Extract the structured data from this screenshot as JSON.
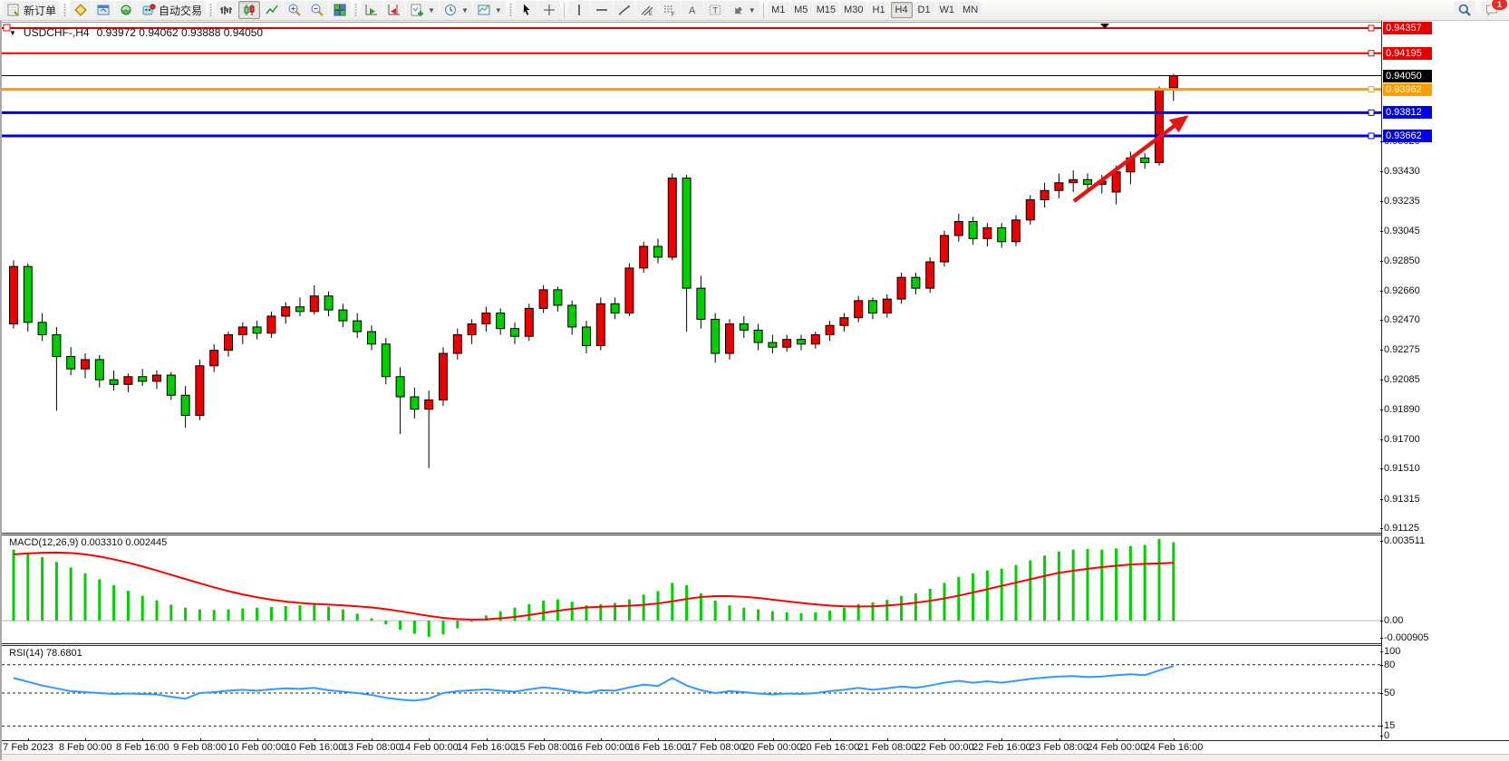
{
  "toolbar": {
    "new_order_label": "新订单",
    "auto_trading_label": "自动交易",
    "timeframes": [
      "M1",
      "M5",
      "M15",
      "M30",
      "H1",
      "H4",
      "D1",
      "W1",
      "MN"
    ],
    "active_timeframe": "H4",
    "notification_badge": "1",
    "icon_names": [
      "new-order",
      "market-watch",
      "navigator",
      "signals",
      "auto-trading",
      "bar-chart",
      "candlestick-chart",
      "line-chart",
      "zoom-in",
      "zoom-out",
      "tile-windows",
      "auto-scroll",
      "chart-shift",
      "add-indicator",
      "periods-clock",
      "templates",
      "cursor",
      "crosshair",
      "vertical-line",
      "horizontal-line",
      "trendline",
      "equidistant-channel",
      "fibonacci",
      "text",
      "text-label",
      "arrows",
      "search",
      "chat"
    ]
  },
  "symbol_header": {
    "title": "USDCHF-,H4",
    "ohlc": "0.93972 0.94062 0.93888 0.94050"
  },
  "indicators": {
    "macd_label": "MACD(12,26,9) 0.003310 0.002445",
    "rsi_label": "RSI(14) 78.6801",
    "macd_scale": [
      {
        "text": "0.003511",
        "v": 0.003511
      },
      {
        "text": "0.00",
        "v": 0.0
      },
      {
        "text": "-0.000905",
        "v": -0.000905
      }
    ],
    "rsi_scale": [
      {
        "text": "100",
        "v": 100
      },
      {
        "text": "80",
        "v": 80
      },
      {
        "text": "50",
        "v": 50
      },
      {
        "text": "15",
        "v": 15
      },
      {
        "text": "0",
        "v": 0
      }
    ],
    "rsi_dashed_levels": [
      80,
      50,
      15
    ]
  },
  "price_axis_ticks": [
    "0.93620",
    "0.93430",
    "0.93235",
    "0.93045",
    "0.92850",
    "0.92660",
    "0.92470",
    "0.92275",
    "0.92085",
    "0.91890",
    "0.91700",
    "0.91510",
    "0.91315",
    "0.91125"
  ],
  "levels": [
    {
      "label": "0.94357",
      "price": 0.94357,
      "color": "#e60000",
      "width": 2
    },
    {
      "label": "0.94195",
      "price": 0.94195,
      "color": "#e60000",
      "width": 2
    },
    {
      "label": "0.94050",
      "price": 0.9405,
      "color": "#000000",
      "width": 1,
      "current": true
    },
    {
      "label": "0.93962",
      "price": 0.93962,
      "color": "#ff9c00",
      "width": 3
    },
    {
      "label": "0.93812",
      "price": 0.93812,
      "color": "#0000e8",
      "width": 3
    },
    {
      "label": "0.93662",
      "price": 0.93662,
      "color": "#0000e8",
      "width": 3
    }
  ],
  "time_axis_labels": [
    "7 Feb 2023",
    "8 Feb 00:00",
    "8 Feb 16:00",
    "9 Feb 08:00",
    "10 Feb 00:00",
    "10 Feb 16:00",
    "13 Feb 08:00",
    "14 Feb 00:00",
    "14 Feb 16:00",
    "15 Feb 08:00",
    "16 Feb 00:00",
    "16 Feb 16:00",
    "17 Feb 08:00",
    "20 Feb 00:00",
    "20 Feb 16:00",
    "21 Feb 08:00",
    "22 Feb 00:00",
    "22 Feb 16:00",
    "23 Feb 08:00",
    "24 Feb 00:00",
    "24 Feb 16:00"
  ],
  "colors": {
    "bull_candle": "#ee0000",
    "bear_candle": "#00ce00",
    "candle_border": "#000000",
    "macd_histogram": "#00d000",
    "macd_signal": "#ff0000",
    "rsi_line": "#3399ff",
    "arrow": "#e31515",
    "current_price_line": "#000000"
  },
  "chart_data": {
    "type": "candlestick",
    "symbol": "USDCHF",
    "timeframe": "H4",
    "price_range": [
      0.91104,
      0.94392
    ],
    "x_start": 13,
    "x_step": 15.8,
    "label_x_start": 29,
    "label_x_step": 63.2,
    "candles": [
      [
        0.9245,
        0.9286,
        0.9242,
        0.9282
      ],
      [
        0.9282,
        0.9284,
        0.924,
        0.9246
      ],
      [
        0.9246,
        0.9252,
        0.9234,
        0.9238
      ],
      [
        0.9238,
        0.9243,
        0.9189,
        0.9224
      ],
      [
        0.9224,
        0.923,
        0.9212,
        0.9216
      ],
      [
        0.9216,
        0.9226,
        0.921,
        0.9222
      ],
      [
        0.9222,
        0.9225,
        0.9204,
        0.9209
      ],
      [
        0.9209,
        0.9215,
        0.9202,
        0.9206
      ],
      [
        0.9206,
        0.9213,
        0.9201,
        0.9211
      ],
      [
        0.9211,
        0.9216,
        0.9205,
        0.9208
      ],
      [
        0.9208,
        0.9215,
        0.9203,
        0.9212
      ],
      [
        0.9212,
        0.9214,
        0.9196,
        0.9199
      ],
      [
        0.9199,
        0.9205,
        0.9178,
        0.9186
      ],
      [
        0.9186,
        0.9222,
        0.9183,
        0.9218
      ],
      [
        0.9218,
        0.9232,
        0.9214,
        0.9228
      ],
      [
        0.9228,
        0.924,
        0.9224,
        0.9238
      ],
      [
        0.9238,
        0.9246,
        0.9232,
        0.9243
      ],
      [
        0.9243,
        0.9247,
        0.9235,
        0.9239
      ],
      [
        0.9239,
        0.9253,
        0.9236,
        0.925
      ],
      [
        0.925,
        0.9259,
        0.9245,
        0.9256
      ],
      [
        0.9256,
        0.9262,
        0.925,
        0.9253
      ],
      [
        0.9253,
        0.927,
        0.9251,
        0.9263
      ],
      [
        0.9263,
        0.9266,
        0.925,
        0.9254
      ],
      [
        0.9254,
        0.9258,
        0.9243,
        0.9247
      ],
      [
        0.9247,
        0.9252,
        0.9236,
        0.924
      ],
      [
        0.924,
        0.9244,
        0.9228,
        0.9232
      ],
      [
        0.9232,
        0.9236,
        0.9206,
        0.9211
      ],
      [
        0.9211,
        0.9217,
        0.9174,
        0.9198
      ],
      [
        0.9198,
        0.9204,
        0.9184,
        0.919
      ],
      [
        0.919,
        0.9202,
        0.9152,
        0.9196
      ],
      [
        0.9196,
        0.923,
        0.9192,
        0.9226
      ],
      [
        0.9226,
        0.9242,
        0.9222,
        0.9238
      ],
      [
        0.9238,
        0.9248,
        0.9232,
        0.9245
      ],
      [
        0.9245,
        0.9256,
        0.924,
        0.9252
      ],
      [
        0.9252,
        0.9255,
        0.9238,
        0.9242
      ],
      [
        0.9242,
        0.9246,
        0.9232,
        0.9237
      ],
      [
        0.9237,
        0.9258,
        0.9234,
        0.9255
      ],
      [
        0.9255,
        0.927,
        0.9252,
        0.9267
      ],
      [
        0.9267,
        0.9269,
        0.9253,
        0.9257
      ],
      [
        0.9257,
        0.926,
        0.9238,
        0.9243
      ],
      [
        0.9243,
        0.9247,
        0.9226,
        0.9231
      ],
      [
        0.9231,
        0.9262,
        0.9228,
        0.9258
      ],
      [
        0.9258,
        0.9262,
        0.9248,
        0.9252
      ],
      [
        0.9252,
        0.9284,
        0.925,
        0.9281
      ],
      [
        0.9281,
        0.9298,
        0.9278,
        0.9295
      ],
      [
        0.9295,
        0.93,
        0.9284,
        0.9288
      ],
      [
        0.9288,
        0.9342,
        0.9286,
        0.9339
      ],
      [
        0.9339,
        0.9341,
        0.924,
        0.9268
      ],
      [
        0.9268,
        0.9276,
        0.9242,
        0.9248
      ],
      [
        0.9248,
        0.9252,
        0.922,
        0.9226
      ],
      [
        0.9226,
        0.9248,
        0.9222,
        0.9245
      ],
      [
        0.9245,
        0.925,
        0.9236,
        0.9241
      ],
      [
        0.9241,
        0.9245,
        0.9228,
        0.9233
      ],
      [
        0.9233,
        0.9238,
        0.9226,
        0.923
      ],
      [
        0.923,
        0.9238,
        0.9227,
        0.9235
      ],
      [
        0.9235,
        0.9238,
        0.9228,
        0.9232
      ],
      [
        0.9232,
        0.924,
        0.9229,
        0.9238
      ],
      [
        0.9238,
        0.9247,
        0.9234,
        0.9244
      ],
      [
        0.9244,
        0.9252,
        0.924,
        0.9249
      ],
      [
        0.9249,
        0.9263,
        0.9246,
        0.926
      ],
      [
        0.926,
        0.9262,
        0.9248,
        0.9252
      ],
      [
        0.9252,
        0.9264,
        0.9249,
        0.9261
      ],
      [
        0.9261,
        0.9278,
        0.9258,
        0.9275
      ],
      [
        0.9275,
        0.9278,
        0.9264,
        0.9268
      ],
      [
        0.9268,
        0.9288,
        0.9265,
        0.9285
      ],
      [
        0.9285,
        0.9305,
        0.9282,
        0.9302
      ],
      [
        0.9302,
        0.9316,
        0.9298,
        0.9311
      ],
      [
        0.9311,
        0.9314,
        0.9296,
        0.93
      ],
      [
        0.93,
        0.931,
        0.9295,
        0.9307
      ],
      [
        0.9307,
        0.931,
        0.9294,
        0.9298
      ],
      [
        0.9298,
        0.9315,
        0.9295,
        0.9312
      ],
      [
        0.9312,
        0.9328,
        0.9309,
        0.9325
      ],
      [
        0.9325,
        0.9336,
        0.932,
        0.9331
      ],
      [
        0.9331,
        0.9342,
        0.9326,
        0.9336
      ],
      [
        0.9336,
        0.9344,
        0.933,
        0.9338
      ],
      [
        0.9338,
        0.9342,
        0.9331,
        0.9335
      ],
      [
        0.9335,
        0.9341,
        0.9329,
        0.9337
      ],
      [
        0.933,
        0.9347,
        0.9322,
        0.9343
      ],
      [
        0.9343,
        0.9356,
        0.9335,
        0.9352
      ],
      [
        0.9352,
        0.9355,
        0.9345,
        0.9349
      ],
      [
        0.9349,
        0.9398,
        0.9347,
        0.9396
      ],
      [
        0.93972,
        0.94062,
        0.93888,
        0.9405
      ]
    ],
    "macd": {
      "params": "12,26,9",
      "main_value": 0.00331,
      "signal_value": 0.002445,
      "range": [
        -0.00095,
        0.0036
      ],
      "histogram": [
        0.003,
        0.00285,
        0.00268,
        0.00248,
        0.00225,
        0.002,
        0.00175,
        0.0015,
        0.00126,
        0.00105,
        0.00086,
        0.00068,
        0.00055,
        0.00048,
        0.00045,
        0.00048,
        0.00052,
        0.00055,
        0.00058,
        0.00062,
        0.00065,
        0.00068,
        0.0006,
        0.00048,
        0.0003,
        0.0001,
        -0.00015,
        -0.00038,
        -0.00055,
        -0.00068,
        -0.00058,
        -0.00032,
        -5e-05,
        0.00022,
        0.0004,
        0.00055,
        0.0007,
        0.00085,
        0.0009,
        0.0008,
        0.00065,
        0.0007,
        0.00075,
        0.0009,
        0.0011,
        0.00125,
        0.0016,
        0.0015,
        0.00115,
        0.00085,
        0.00065,
        0.00055,
        0.00048,
        0.0004,
        0.00035,
        0.00032,
        0.00035,
        0.00042,
        0.00055,
        0.0007,
        0.00078,
        0.00088,
        0.00105,
        0.00115,
        0.00135,
        0.0016,
        0.00185,
        0.002,
        0.00212,
        0.0022,
        0.00235,
        0.00255,
        0.00275,
        0.00292,
        0.003,
        0.00303,
        0.003,
        0.00305,
        0.00315,
        0.0032,
        0.00345,
        0.00331
      ],
      "signal": [
        0.0028,
        0.00284,
        0.00287,
        0.00288,
        0.00286,
        0.0028,
        0.00271,
        0.00259,
        0.00245,
        0.00229,
        0.00212,
        0.00194,
        0.00176,
        0.00158,
        0.00141,
        0.00125,
        0.00111,
        0.00099,
        0.00089,
        0.00081,
        0.00075,
        0.00071,
        0.00068,
        0.00065,
        0.00061,
        0.00056,
        0.00049,
        0.0004,
        0.0003,
        0.0002,
        0.00012,
        7e-05,
        5e-05,
        6e-05,
        0.0001,
        0.00016,
        0.00024,
        0.00033,
        0.00042,
        0.0005,
        0.00056,
        0.00059,
        0.00061,
        0.00063,
        0.00067,
        0.00073,
        0.00082,
        0.00092,
        0.001,
        0.00104,
        0.00104,
        0.00101,
        0.00096,
        0.00089,
        0.00082,
        0.00075,
        0.00069,
        0.00064,
        0.00061,
        0.0006,
        0.00061,
        0.00064,
        0.00069,
        0.00076,
        0.00084,
        0.00094,
        0.00106,
        0.00119,
        0.00133,
        0.00147,
        0.00161,
        0.00175,
        0.00189,
        0.00202,
        0.00211,
        0.00219,
        0.00226,
        0.00232,
        0.00237,
        0.0024,
        0.00242,
        0.002445
      ]
    },
    "rsi": {
      "period": 14,
      "value": 78.6801,
      "range": [
        0,
        100
      ],
      "series": [
        66,
        62,
        58,
        55,
        52,
        51,
        50,
        49,
        49.5,
        49,
        48.5,
        46,
        44,
        50,
        51,
        52.5,
        53.5,
        52.5,
        54,
        55,
        54.5,
        55.5,
        53,
        51.5,
        50,
        48,
        45,
        43,
        42,
        44,
        50,
        52,
        53,
        54,
        52.5,
        51.5,
        54,
        56,
        54.5,
        52,
        50,
        53,
        52.5,
        56,
        59,
        57.5,
        66,
        58,
        53,
        50,
        52,
        51,
        49.5,
        48.5,
        49.5,
        49,
        50,
        52,
        53.5,
        55.5,
        53.5,
        55,
        57,
        55.5,
        58,
        61,
        63,
        61,
        62.5,
        61,
        63,
        65,
        66.5,
        67.5,
        68,
        67,
        67.5,
        69,
        70,
        69,
        74,
        78.7
      ]
    },
    "annotations": [
      {
        "type": "arrow",
        "color": "#e31515",
        "from": [
          1183,
          197
        ],
        "to": [
          1303,
          107
        ]
      }
    ]
  }
}
